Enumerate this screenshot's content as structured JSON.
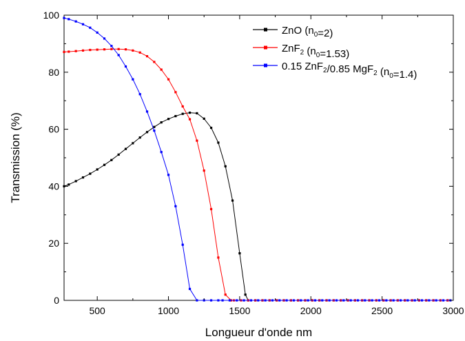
{
  "chart_data": {
    "type": "line",
    "title": "",
    "xlabel": "Longueur d'onde nm",
    "ylabel": "Transmission (%)",
    "xlim": [
      267,
      3000
    ],
    "ylim": [
      0,
      100
    ],
    "x_ticks": [
      500,
      1000,
      1500,
      2000,
      2500,
      3000
    ],
    "y_ticks": [
      0,
      20,
      40,
      60,
      80,
      100
    ],
    "grid": false,
    "legend_position": "top-right",
    "series": [
      {
        "name": "ZnO (n0=2)",
        "legend": {
          "pre": "ZnO (n",
          "sub1": "0",
          "mid": "=2)",
          "sub2": "",
          "post": "",
          "sub3": "",
          "tail": ""
        },
        "color": "#000000",
        "x": [
          267,
          300,
          350,
          400,
          450,
          500,
          550,
          600,
          650,
          700,
          750,
          800,
          850,
          900,
          950,
          1000,
          1050,
          1100,
          1150,
          1200,
          1250,
          1300,
          1350,
          1400,
          1450,
          1500,
          1540,
          1560
        ],
        "y": [
          40,
          40.6,
          41.8,
          43.1,
          44.4,
          45.9,
          47.5,
          49.2,
          51.1,
          53.1,
          55.1,
          57.1,
          59.0,
          60.8,
          62.4,
          63.6,
          64.6,
          65.4,
          65.8,
          65.6,
          63.7,
          60.5,
          55.3,
          47.0,
          35.0,
          16.5,
          2.0,
          0
        ]
      },
      {
        "name": "ZnF2 (n0=1.53)",
        "legend": {
          "pre": "ZnF",
          "sub1": "2",
          "mid": " (n",
          "sub2": "0",
          "post": "=1.53)",
          "sub3": "",
          "tail": ""
        },
        "color": "#ff0000",
        "x": [
          267,
          300,
          350,
          400,
          450,
          500,
          550,
          600,
          650,
          700,
          750,
          800,
          850,
          900,
          950,
          1000,
          1050,
          1100,
          1150,
          1200,
          1250,
          1300,
          1350,
          1400,
          1440,
          1460
        ],
        "y": [
          87.1,
          87.2,
          87.4,
          87.6,
          87.8,
          87.9,
          88.0,
          88.1,
          88.1,
          88.0,
          87.6,
          86.9,
          85.6,
          83.6,
          80.9,
          77.5,
          73.0,
          68.0,
          63.5,
          56.0,
          45.5,
          32.0,
          15.0,
          2.0,
          0,
          0
        ]
      },
      {
        "name": "0.15 ZnF2/0.85 MgF2 (n0=1.4)",
        "legend": {
          "pre": "0.15 ZnF",
          "sub1": "2",
          "mid": "/0.85 MgF",
          "sub2": "2",
          "post": " (n",
          "sub3": "0",
          "tail": "=1.4)"
        },
        "color": "#0000ff",
        "x": [
          267,
          300,
          350,
          400,
          450,
          500,
          550,
          600,
          650,
          700,
          750,
          800,
          850,
          900,
          950,
          1000,
          1050,
          1100,
          1150,
          1200,
          1250,
          1300,
          1350,
          1380
        ],
        "y": [
          99.0,
          98.6,
          97.8,
          96.8,
          95.6,
          93.9,
          91.8,
          89.2,
          86.0,
          82.0,
          77.5,
          72.3,
          66.2,
          59.5,
          52.0,
          44.0,
          33.0,
          19.5,
          4.0,
          0,
          0,
          0,
          0,
          0
        ]
      }
    ]
  }
}
